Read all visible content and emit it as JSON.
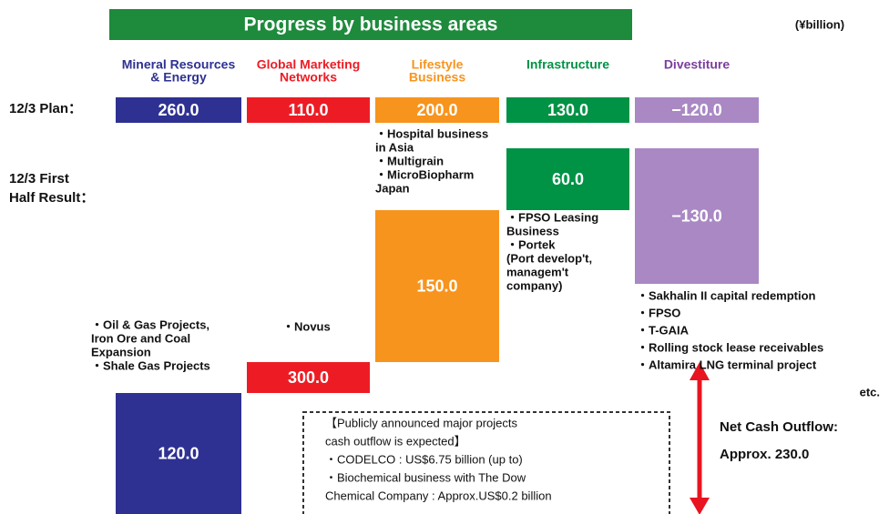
{
  "title": "Progress by business areas",
  "unit": "(¥billion)",
  "row_labels": {
    "plan": [
      "12/3 Plan："
    ],
    "result": [
      "12/3 First",
      "Half Result："
    ]
  },
  "columns": [
    {
      "header": [
        "Mineral Resources",
        "& Energy"
      ],
      "plan": "260.0",
      "result": "120.0"
    },
    {
      "header": [
        "Global Marketing",
        "Networks"
      ],
      "plan": "110.0",
      "result": "300.0"
    },
    {
      "header": [
        "Lifestyle",
        "Business"
      ],
      "plan": "200.0",
      "result": "150.0"
    },
    {
      "header": [
        "Infrastructure"
      ],
      "plan": "130.0",
      "result": "60.0"
    },
    {
      "header": [
        "Divestiture"
      ],
      "plan": "−120.0",
      "result": "−130.0"
    }
  ],
  "notes": {
    "mineral": [
      "・Oil & Gas Projects,",
      "  Iron Ore and Coal",
      "  Expansion",
      "・Shale Gas Projects"
    ],
    "marketing": [
      "・Novus"
    ],
    "lifestyle": [
      "・Hospital business",
      "  in Asia",
      "・Multigrain",
      "・MicroBiopharm",
      "  Japan"
    ],
    "infrastructure": [
      "・FPSO Leasing",
      "  Business",
      "・Portek",
      "  (Port develop't,",
      "  managem't",
      "  company)"
    ],
    "divestiture": [
      "・Sakhalin II capital redemption",
      "・FPSO",
      "・T-GAIA",
      "・Rolling stock lease  receivables",
      "・Altamira LNG terminal project"
    ],
    "divestiture_etc": "etc."
  },
  "box": [
    "【Publicly announced major projects",
    "  cash outflow is expected】",
    "・CODELCO : US$6.75 billion (up to)",
    "・Biochemical business with The Dow",
    "  Chemical Company : Approx.US$0.2 billion"
  ],
  "net": [
    "Net Cash Outflow:",
    "Approx. 230.0"
  ]
}
